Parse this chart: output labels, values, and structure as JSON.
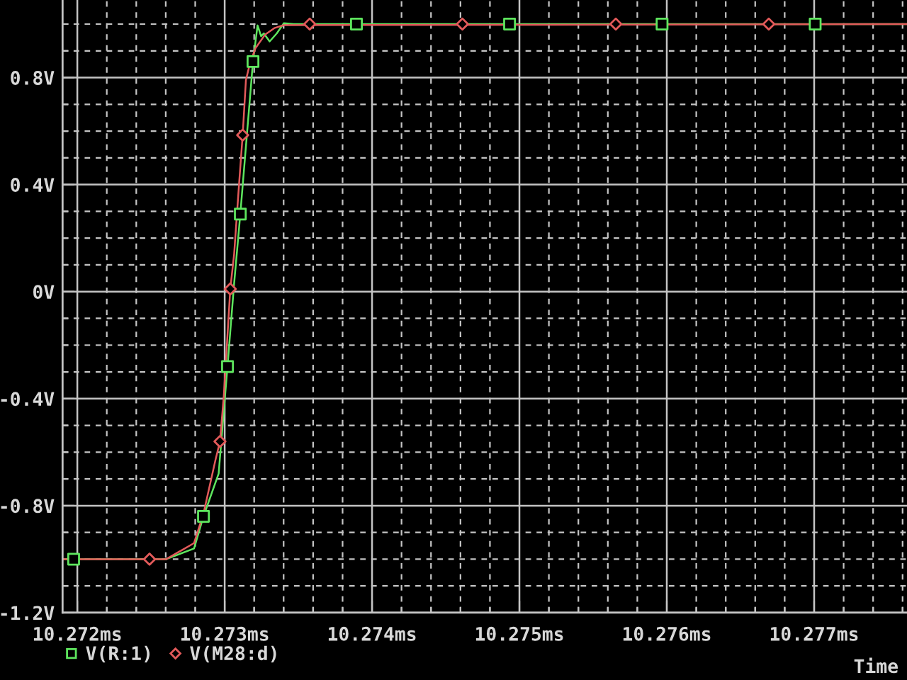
{
  "chart_data": {
    "type": "line",
    "xlabel": "Time",
    "xlim": [
      10.2719,
      10.27763
    ],
    "ylim": [
      -1.2,
      1.09
    ],
    "xticks": [
      {
        "value": 10.272,
        "label": "10.272ms"
      },
      {
        "value": 10.2722,
        "label": null
      },
      {
        "value": 10.2724,
        "label": null
      },
      {
        "value": 10.2726,
        "label": null
      },
      {
        "value": 10.2728,
        "label": null
      },
      {
        "value": 10.273,
        "label": "10.273ms"
      },
      {
        "value": 10.2732,
        "label": null
      },
      {
        "value": 10.2734,
        "label": null
      },
      {
        "value": 10.2736,
        "label": null
      },
      {
        "value": 10.2738,
        "label": null
      },
      {
        "value": 10.274,
        "label": "10.274ms"
      },
      {
        "value": 10.2742,
        "label": null
      },
      {
        "value": 10.2744,
        "label": null
      },
      {
        "value": 10.2746,
        "label": null
      },
      {
        "value": 10.2748,
        "label": null
      },
      {
        "value": 10.275,
        "label": "10.275ms"
      },
      {
        "value": 10.2752,
        "label": null
      },
      {
        "value": 10.2754,
        "label": null
      },
      {
        "value": 10.2756,
        "label": null
      },
      {
        "value": 10.2758,
        "label": null
      },
      {
        "value": 10.276,
        "label": "10.276ms"
      },
      {
        "value": 10.2762,
        "label": null
      },
      {
        "value": 10.2764,
        "label": null
      },
      {
        "value": 10.2766,
        "label": null
      },
      {
        "value": 10.2768,
        "label": null
      },
      {
        "value": 10.277,
        "label": "10.277ms"
      },
      {
        "value": 10.2772,
        "label": null
      },
      {
        "value": 10.2774,
        "label": null
      },
      {
        "value": 10.2776,
        "label": null
      }
    ],
    "yticks": [
      {
        "value": -1.2,
        "label": "-1.2V"
      },
      {
        "value": -1.1,
        "label": null
      },
      {
        "value": -1.0,
        "label": null
      },
      {
        "value": -0.9,
        "label": null
      },
      {
        "value": -0.8,
        "label": "-0.8V"
      },
      {
        "value": -0.7,
        "label": null
      },
      {
        "value": -0.6,
        "label": null
      },
      {
        "value": -0.5,
        "label": null
      },
      {
        "value": -0.4,
        "label": "-0.4V"
      },
      {
        "value": -0.3,
        "label": null
      },
      {
        "value": -0.2,
        "label": null
      },
      {
        "value": -0.1,
        "label": null
      },
      {
        "value": 0,
        "label": "0V"
      },
      {
        "value": 0.1,
        "label": null
      },
      {
        "value": 0.2,
        "label": null
      },
      {
        "value": 0.3,
        "label": null
      },
      {
        "value": 0.4,
        "label": "0.4V"
      },
      {
        "value": 0.5,
        "label": null
      },
      {
        "value": 0.6,
        "label": null
      },
      {
        "value": 0.7,
        "label": null
      },
      {
        "value": 0.8,
        "label": "0.8V"
      },
      {
        "value": 0.9,
        "label": null
      },
      {
        "value": 1.0,
        "label": null
      }
    ],
    "grid": true,
    "legend": "bottom left",
    "series": [
      {
        "color": "#5ee65e",
        "x": [
          10.2719,
          10.272603,
          10.272792,
          10.272856,
          10.272959,
          10.273019,
          10.273064,
          10.273106,
          10.273192,
          10.273223,
          10.273247,
          10.273266,
          10.273305,
          10.273353,
          10.273401,
          10.273468,
          10.27763
        ],
        "values": [
          -1.0,
          -1.0,
          -0.96,
          -0.84,
          -0.68,
          -0.28,
          0.03,
          0.29,
          0.86,
          0.995,
          0.955,
          0.965,
          0.935,
          0.965,
          1.003,
          1.0,
          1.0
        ]
      },
      {
        "type": "scatter",
        "name": "V(R:1)",
        "color": "#5ee65e",
        "marker": "square",
        "x": [
          10.271975,
          10.272856,
          10.273019,
          10.273106,
          10.273192,
          10.273894,
          10.274933,
          10.275968,
          10.277007
        ],
        "values": [
          -1.0,
          -0.84,
          -0.28,
          0.29,
          0.86,
          1.0,
          1.0,
          1.0,
          1.0
        ]
      },
      {
        "color": "#e35a5a",
        "x": [
          10.2719,
          10.272603,
          10.272792,
          10.272856,
          10.272937,
          10.272968,
          10.272994,
          10.273016,
          10.273038,
          10.273064,
          10.273096,
          10.273122,
          10.273144,
          10.27317,
          10.273209,
          10.273273,
          10.273337,
          10.273401,
          10.27763
        ],
        "values": [
          -1.0,
          -1.0,
          -0.94,
          -0.83,
          -0.63,
          -0.56,
          -0.39,
          -0.19,
          0.01,
          0.14,
          0.39,
          0.585,
          0.79,
          0.85,
          0.91,
          0.96,
          0.985,
          0.996,
          1.0
        ]
      },
      {
        "type": "scatter",
        "name": "V(M28:d)",
        "color": "#e35a5a",
        "marker": "diamond",
        "x": [
          10.27249,
          10.272968,
          10.273038,
          10.273122,
          10.273577,
          10.274613,
          10.275654,
          10.276692
        ],
        "values": [
          -1.0,
          -0.56,
          0.01,
          0.585,
          1.0,
          1.0,
          1.0,
          1.0
        ]
      }
    ]
  }
}
